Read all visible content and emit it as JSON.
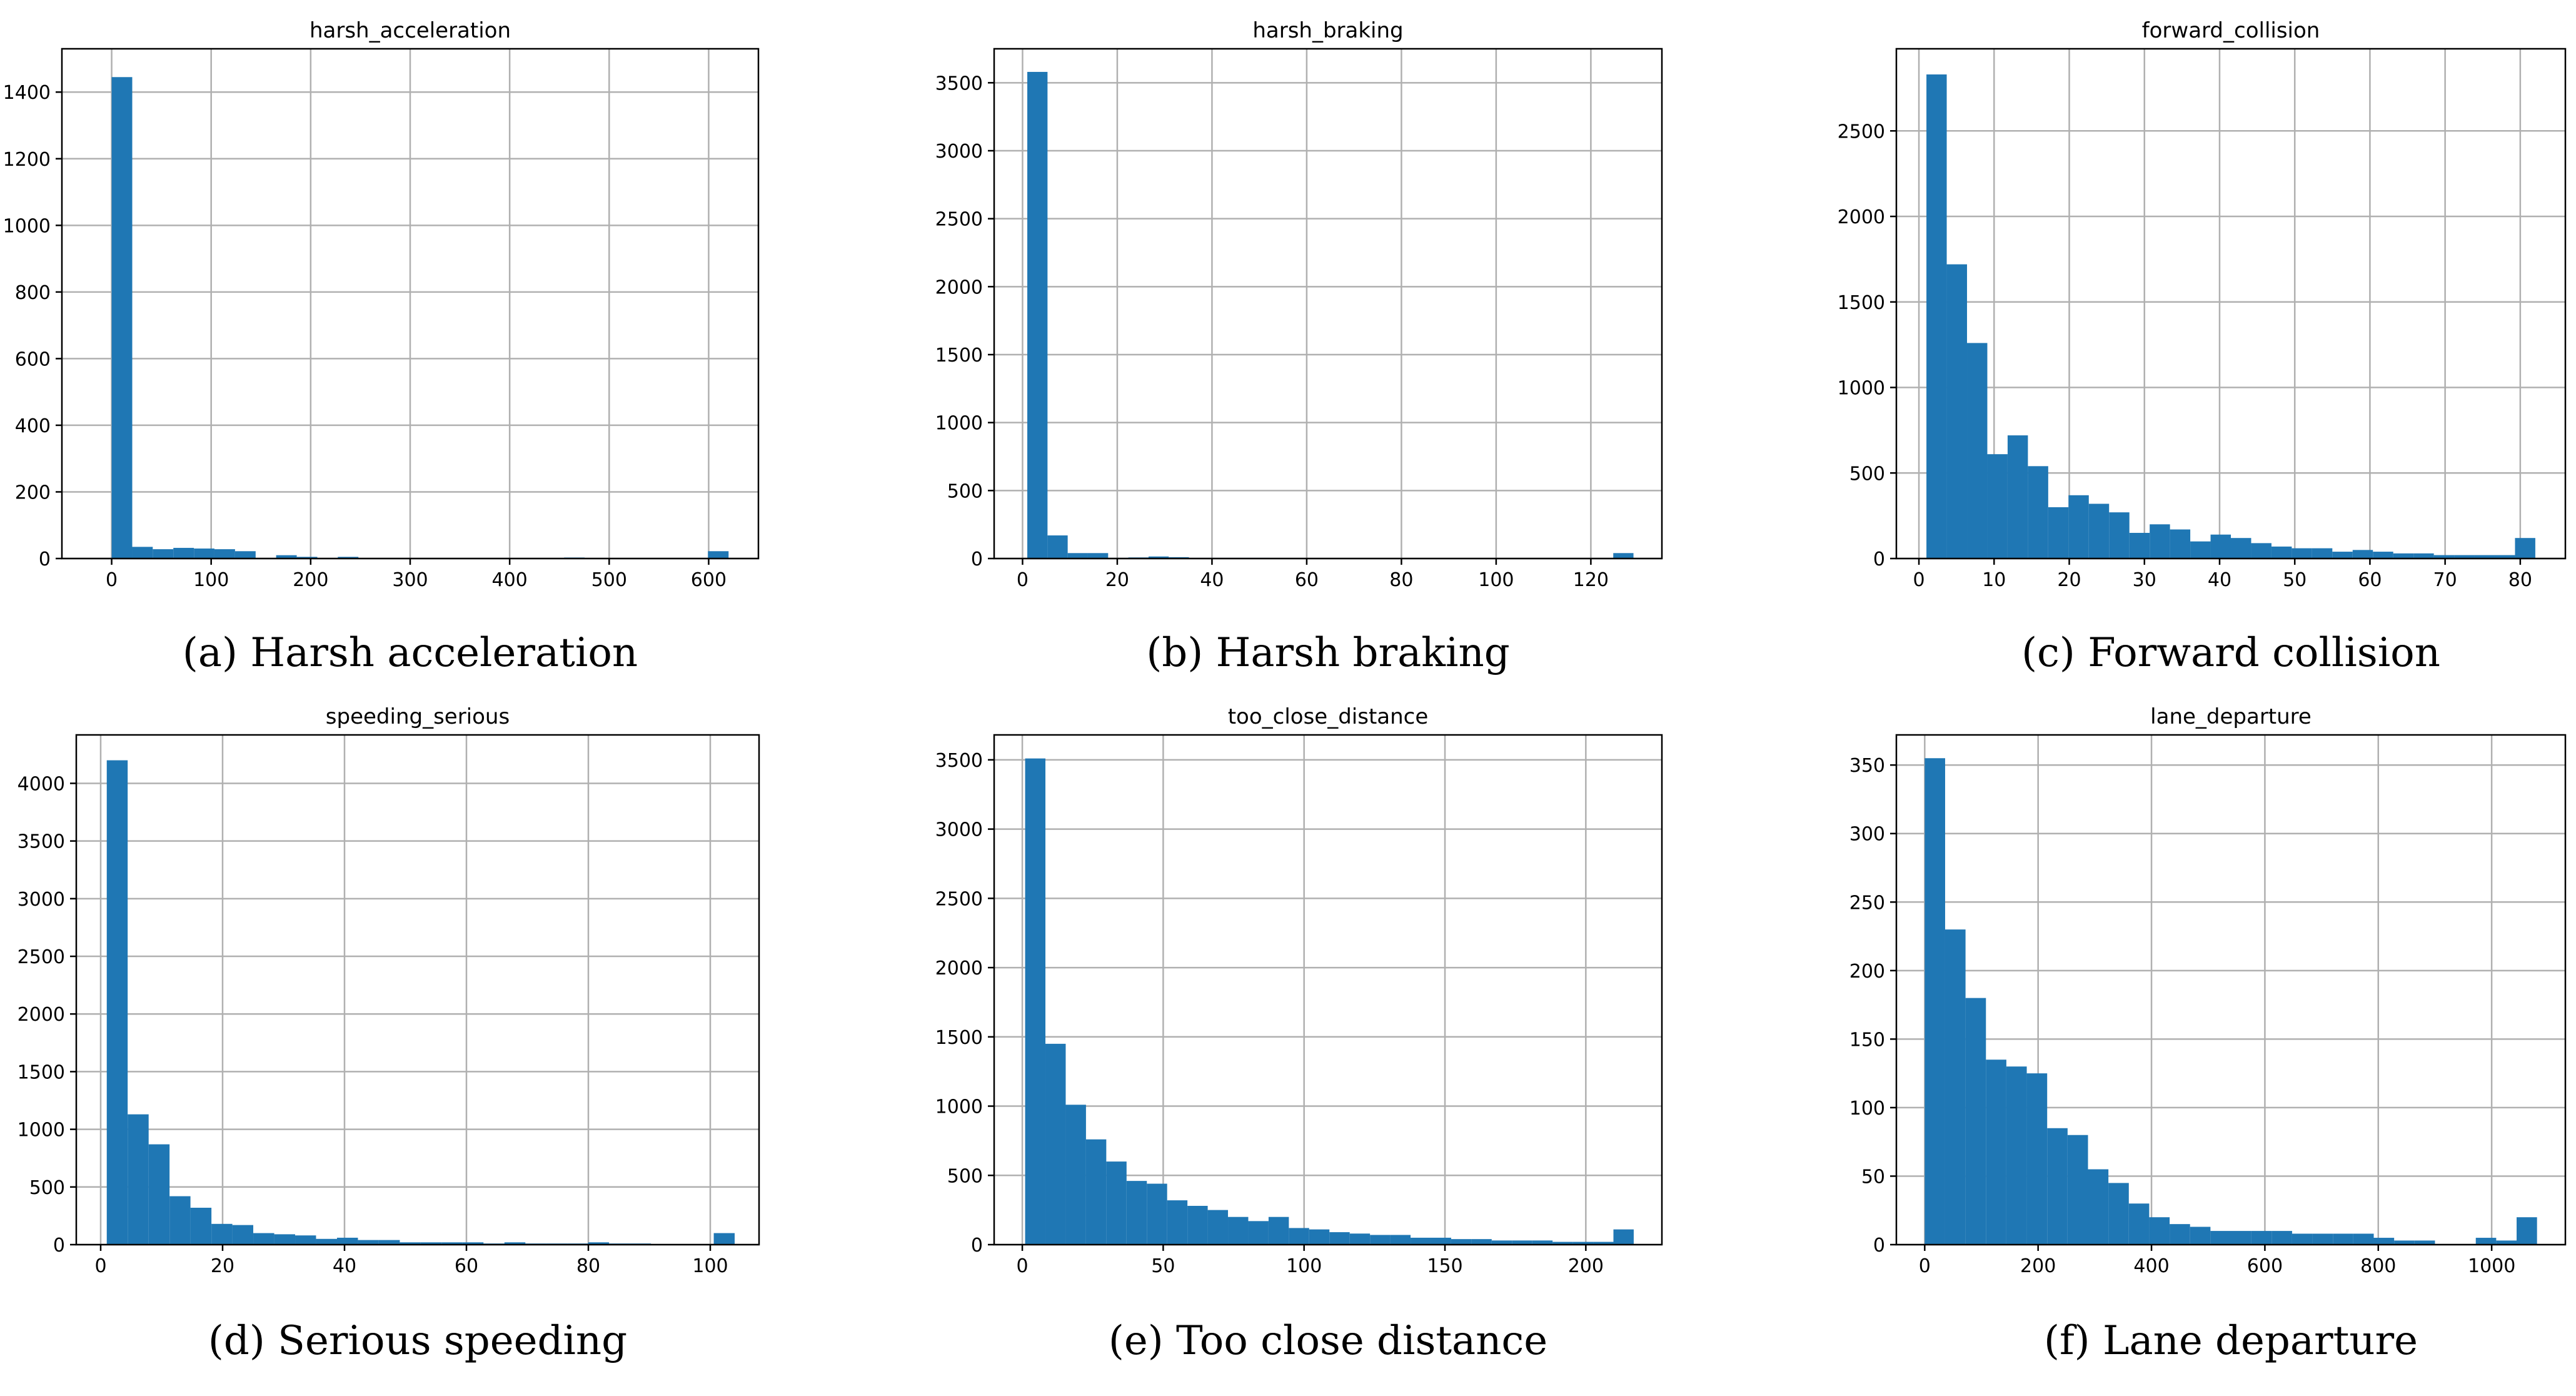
{
  "colors": {
    "bar": "#1f77b4"
  },
  "chart_data": [
    {
      "type": "bar",
      "title": "harsh_acceleration",
      "caption": "(a) Harsh acceleration",
      "xlim": [
        -50,
        650
      ],
      "ylim": [
        0,
        1530
      ],
      "xticks": [
        0,
        100,
        200,
        300,
        400,
        500,
        600
      ],
      "yticks": [
        0,
        200,
        400,
        600,
        800,
        1000,
        1200,
        1400
      ],
      "bin_edges": [
        0,
        20.7,
        41.3,
        62,
        82.7,
        103.3,
        124,
        144.7,
        165.3,
        186,
        206.7,
        227.3,
        248,
        268.7,
        289.3,
        310,
        330.7,
        351.3,
        372,
        392.7,
        413.3,
        434,
        454.7,
        475.3,
        496,
        516.7,
        537.3,
        558,
        578.7,
        599.3,
        620
      ],
      "values": [
        1445,
        35,
        28,
        32,
        30,
        28,
        22,
        0,
        10,
        5,
        0,
        5,
        0,
        0,
        0,
        0,
        0,
        0,
        0,
        0,
        0,
        0,
        3,
        0,
        0,
        0,
        0,
        0,
        0,
        22
      ]
    },
    {
      "type": "bar",
      "title": "harsh_braking",
      "caption": "(b) Harsh braking",
      "xlim": [
        -6,
        135
      ],
      "ylim": [
        0,
        3750
      ],
      "xticks": [
        0,
        20,
        40,
        60,
        80,
        100,
        120
      ],
      "yticks": [
        0,
        500,
        1000,
        1500,
        2000,
        2500,
        3000,
        3500
      ],
      "bin_edges": [
        1,
        5.27,
        9.53,
        13.8,
        18.07,
        22.33,
        26.6,
        30.87,
        35.13,
        39.4,
        43.67,
        47.93,
        52.2,
        56.47,
        60.73,
        65,
        69.27,
        73.53,
        77.8,
        82.07,
        86.33,
        90.6,
        94.87,
        99.13,
        103.4,
        107.67,
        111.93,
        116.2,
        120.47,
        124.73,
        129
      ],
      "values": [
        3580,
        170,
        40,
        40,
        5,
        8,
        15,
        10,
        5,
        5,
        5,
        5,
        3,
        3,
        3,
        3,
        3,
        2,
        2,
        2,
        2,
        2,
        2,
        2,
        2,
        2,
        2,
        2,
        2,
        40
      ]
    },
    {
      "type": "bar",
      "title": "forward_collision",
      "caption": "(c) Forward collision",
      "xlim": [
        -3,
        86
      ],
      "ylim": [
        0,
        2980
      ],
      "xticks": [
        0,
        10,
        20,
        30,
        40,
        50,
        60,
        70,
        80
      ],
      "yticks": [
        0,
        500,
        1000,
        1500,
        2000,
        2500
      ],
      "bin_edges": [
        1,
        3.7,
        6.4,
        9.1,
        11.8,
        14.5,
        17.2,
        19.9,
        22.6,
        25.3,
        28,
        30.7,
        33.4,
        36.1,
        38.8,
        41.5,
        44.2,
        46.9,
        49.6,
        52.3,
        55,
        57.7,
        60.4,
        63.1,
        65.8,
        68.5,
        71.2,
        73.9,
        76.6,
        79.3,
        82
      ],
      "values": [
        2830,
        1720,
        1260,
        610,
        720,
        540,
        300,
        370,
        320,
        270,
        150,
        200,
        170,
        100,
        140,
        120,
        90,
        70,
        60,
        60,
        40,
        50,
        40,
        30,
        30,
        20,
        20,
        20,
        20,
        120
      ]
    },
    {
      "type": "bar",
      "title": "speeding_serious",
      "caption": "(d) Serious speeding",
      "xlim": [
        -4,
        108
      ],
      "ylim": [
        0,
        4420
      ],
      "xticks": [
        0,
        20,
        40,
        60,
        80,
        100
      ],
      "yticks": [
        0,
        500,
        1000,
        1500,
        2000,
        2500,
        3000,
        3500,
        4000
      ],
      "bin_edges": [
        1,
        4.43,
        7.87,
        11.3,
        14.73,
        18.17,
        21.6,
        25.03,
        28.47,
        31.9,
        35.33,
        38.77,
        42.2,
        45.63,
        49.07,
        52.5,
        55.93,
        59.37,
        62.8,
        66.23,
        69.67,
        73.1,
        76.53,
        79.97,
        83.4,
        86.83,
        90.27,
        93.7,
        97.13,
        100.57,
        104
      ],
      "values": [
        4200,
        1130,
        870,
        420,
        320,
        180,
        170,
        100,
        90,
        80,
        50,
        60,
        40,
        40,
        20,
        20,
        20,
        20,
        10,
        20,
        10,
        10,
        10,
        20,
        10,
        10,
        5,
        5,
        5,
        100
      ]
    },
    {
      "type": "bar",
      "title": "too_close_distance",
      "caption": "(e) Too close distance",
      "xlim": [
        -10,
        227
      ],
      "ylim": [
        0,
        3680
      ],
      "xticks": [
        0,
        50,
        100,
        150,
        200
      ],
      "yticks": [
        0,
        500,
        1000,
        1500,
        2000,
        2500,
        3000,
        3500
      ],
      "bin_edges": [
        1,
        8.2,
        15.4,
        22.6,
        29.8,
        37,
        44.2,
        51.4,
        58.6,
        65.8,
        73,
        80.2,
        87.4,
        94.6,
        101.8,
        109,
        116.2,
        123.4,
        130.6,
        137.8,
        145,
        152.2,
        159.4,
        166.6,
        173.8,
        181,
        188.2,
        195.4,
        202.6,
        209.8,
        217
      ],
      "values": [
        3510,
        1450,
        1010,
        760,
        600,
        460,
        440,
        320,
        280,
        250,
        200,
        170,
        200,
        120,
        110,
        90,
        80,
        70,
        70,
        50,
        50,
        40,
        40,
        30,
        30,
        30,
        20,
        20,
        20,
        110
      ]
    },
    {
      "type": "bar",
      "title": "lane_departure",
      "caption": "(f) Lane departure",
      "xlim": [
        -50,
        1130
      ],
      "ylim": [
        0,
        372
      ],
      "xticks": [
        0,
        200,
        400,
        600,
        800,
        1000
      ],
      "yticks": [
        0,
        50,
        100,
        150,
        200,
        250,
        300,
        350
      ],
      "bin_edges": [
        0,
        36,
        72,
        108,
        144,
        180,
        216,
        252,
        288,
        324,
        360,
        396,
        432,
        468,
        504,
        540,
        576,
        612,
        648,
        684,
        720,
        756,
        792,
        828,
        864,
        900,
        936,
        972,
        1008,
        1044,
        1080
      ],
      "values": [
        355,
        230,
        180,
        135,
        130,
        125,
        85,
        80,
        55,
        45,
        30,
        20,
        15,
        13,
        10,
        10,
        10,
        10,
        8,
        8,
        8,
        8,
        5,
        3,
        3,
        0,
        0,
        5,
        3,
        20
      ]
    }
  ]
}
